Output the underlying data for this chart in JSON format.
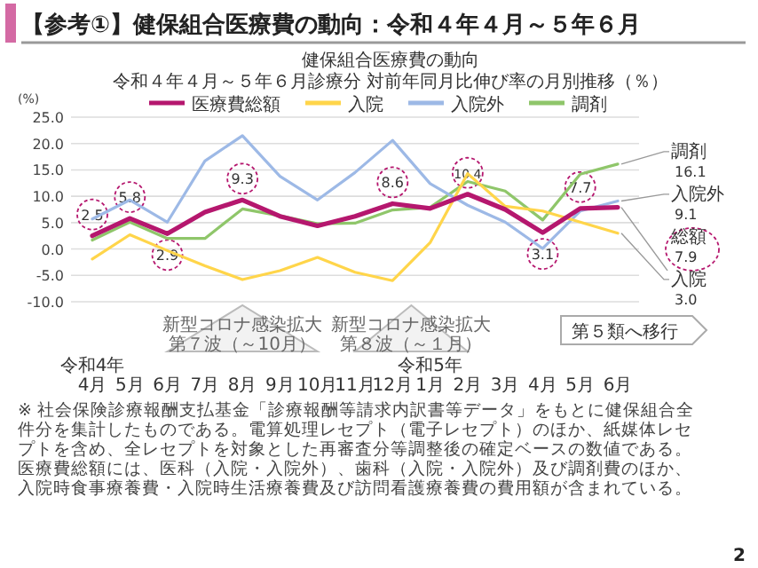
{
  "chart_data": {
    "type": "line",
    "title": "健保組合医療費の動向",
    "subtitle": "令和４年４月～５年６月診療分 対前年同月比伸び率の月別推移（％）",
    "ylabel": "(%)",
    "categories": [
      "令和4年\n4月",
      "5月",
      "6月",
      "7月",
      "8月",
      "9月",
      "10月",
      "11月",
      "12月",
      "令和5年\n1月",
      "2月",
      "3月",
      "4月",
      "5月",
      "6月"
    ],
    "series": [
      {
        "name": "医療費総額",
        "color": "#b5176e",
        "values": [
          2.5,
          5.8,
          2.9,
          7.0,
          9.3,
          6.2,
          4.4,
          6.2,
          8.6,
          7.7,
          10.4,
          7.5,
          3.1,
          7.7,
          7.9
        ],
        "value_labels": [
          "2.5",
          "5.8",
          "2.9",
          null,
          "9.3",
          null,
          null,
          null,
          "8.6",
          null,
          "10.4",
          null,
          "3.1",
          "7.7",
          "7.9"
        ]
      },
      {
        "name": "入院",
        "color": "#ffd54a",
        "values": [
          -1.9,
          2.7,
          -0.3,
          -3.2,
          -5.8,
          -4.1,
          -1.6,
          -4.4,
          -6.0,
          1.2,
          14.3,
          8.1,
          7.2,
          5.1,
          3.0
        ],
        "value_labels": [
          null,
          null,
          null,
          null,
          null,
          null,
          null,
          null,
          null,
          null,
          null,
          null,
          null,
          null,
          "3.0"
        ]
      },
      {
        "name": "入院外",
        "color": "#9db9e6",
        "values": [
          5.7,
          9.3,
          5.1,
          16.7,
          21.5,
          13.8,
          9.3,
          14.5,
          20.6,
          12.4,
          8.3,
          5.1,
          0.1,
          7.2,
          9.1
        ],
        "value_labels": [
          null,
          null,
          null,
          null,
          null,
          null,
          null,
          null,
          null,
          null,
          null,
          null,
          null,
          null,
          "9.1"
        ]
      },
      {
        "name": "調剤",
        "color": "#8fc66a",
        "values": [
          1.7,
          5.1,
          2.0,
          2.0,
          7.6,
          6.3,
          4.8,
          4.9,
          7.4,
          7.9,
          12.8,
          11.0,
          5.5,
          14.2,
          16.1
        ],
        "value_labels": [
          null,
          null,
          null,
          null,
          null,
          null,
          null,
          null,
          null,
          null,
          null,
          null,
          null,
          null,
          "16.1"
        ]
      }
    ],
    "ylim": [
      -10,
      25
    ],
    "yticks": [
      {
        "value": -10,
        "label": "-10.0"
      },
      {
        "value": -5,
        "label": "-5.0"
      },
      {
        "value": 0,
        "label": "0.0"
      },
      {
        "value": 5,
        "label": "5.0"
      },
      {
        "value": 10,
        "label": "10.0"
      },
      {
        "value": 15,
        "label": "15.0"
      },
      {
        "value": 20,
        "label": "20.0"
      },
      {
        "value": 25,
        "label": "25.0"
      }
    ],
    "grid": "y",
    "legend": "top",
    "annotations": [
      "【参考①】健保組合医療費の動向：令和４年４月～５年６月",
      "※ 社会保険診療報酬支払基金「診療報酬等請求内訳書等データ」をもとに健保組合全件分を集計したものである。電算処理レセプト（電子レセプト）のほか、紙媒体レセプトを含め、全レセプトを対象とした再審査分等調整後の確定ベースの数値である。医療費総額には、医科（入院・入院外）、歯科（入院・入院外）及び調剤費のほか、入院時食事療養費・入院時生活療養費及び訪問看護療養費の費用額が含まれている。",
      "第５類へ移行",
      "2",
      "総額",
      "新型コロナ感染拡大第７波（～10月）",
      "新型コロナ感染拡大第８波（～１月）"
    ]
  }
}
